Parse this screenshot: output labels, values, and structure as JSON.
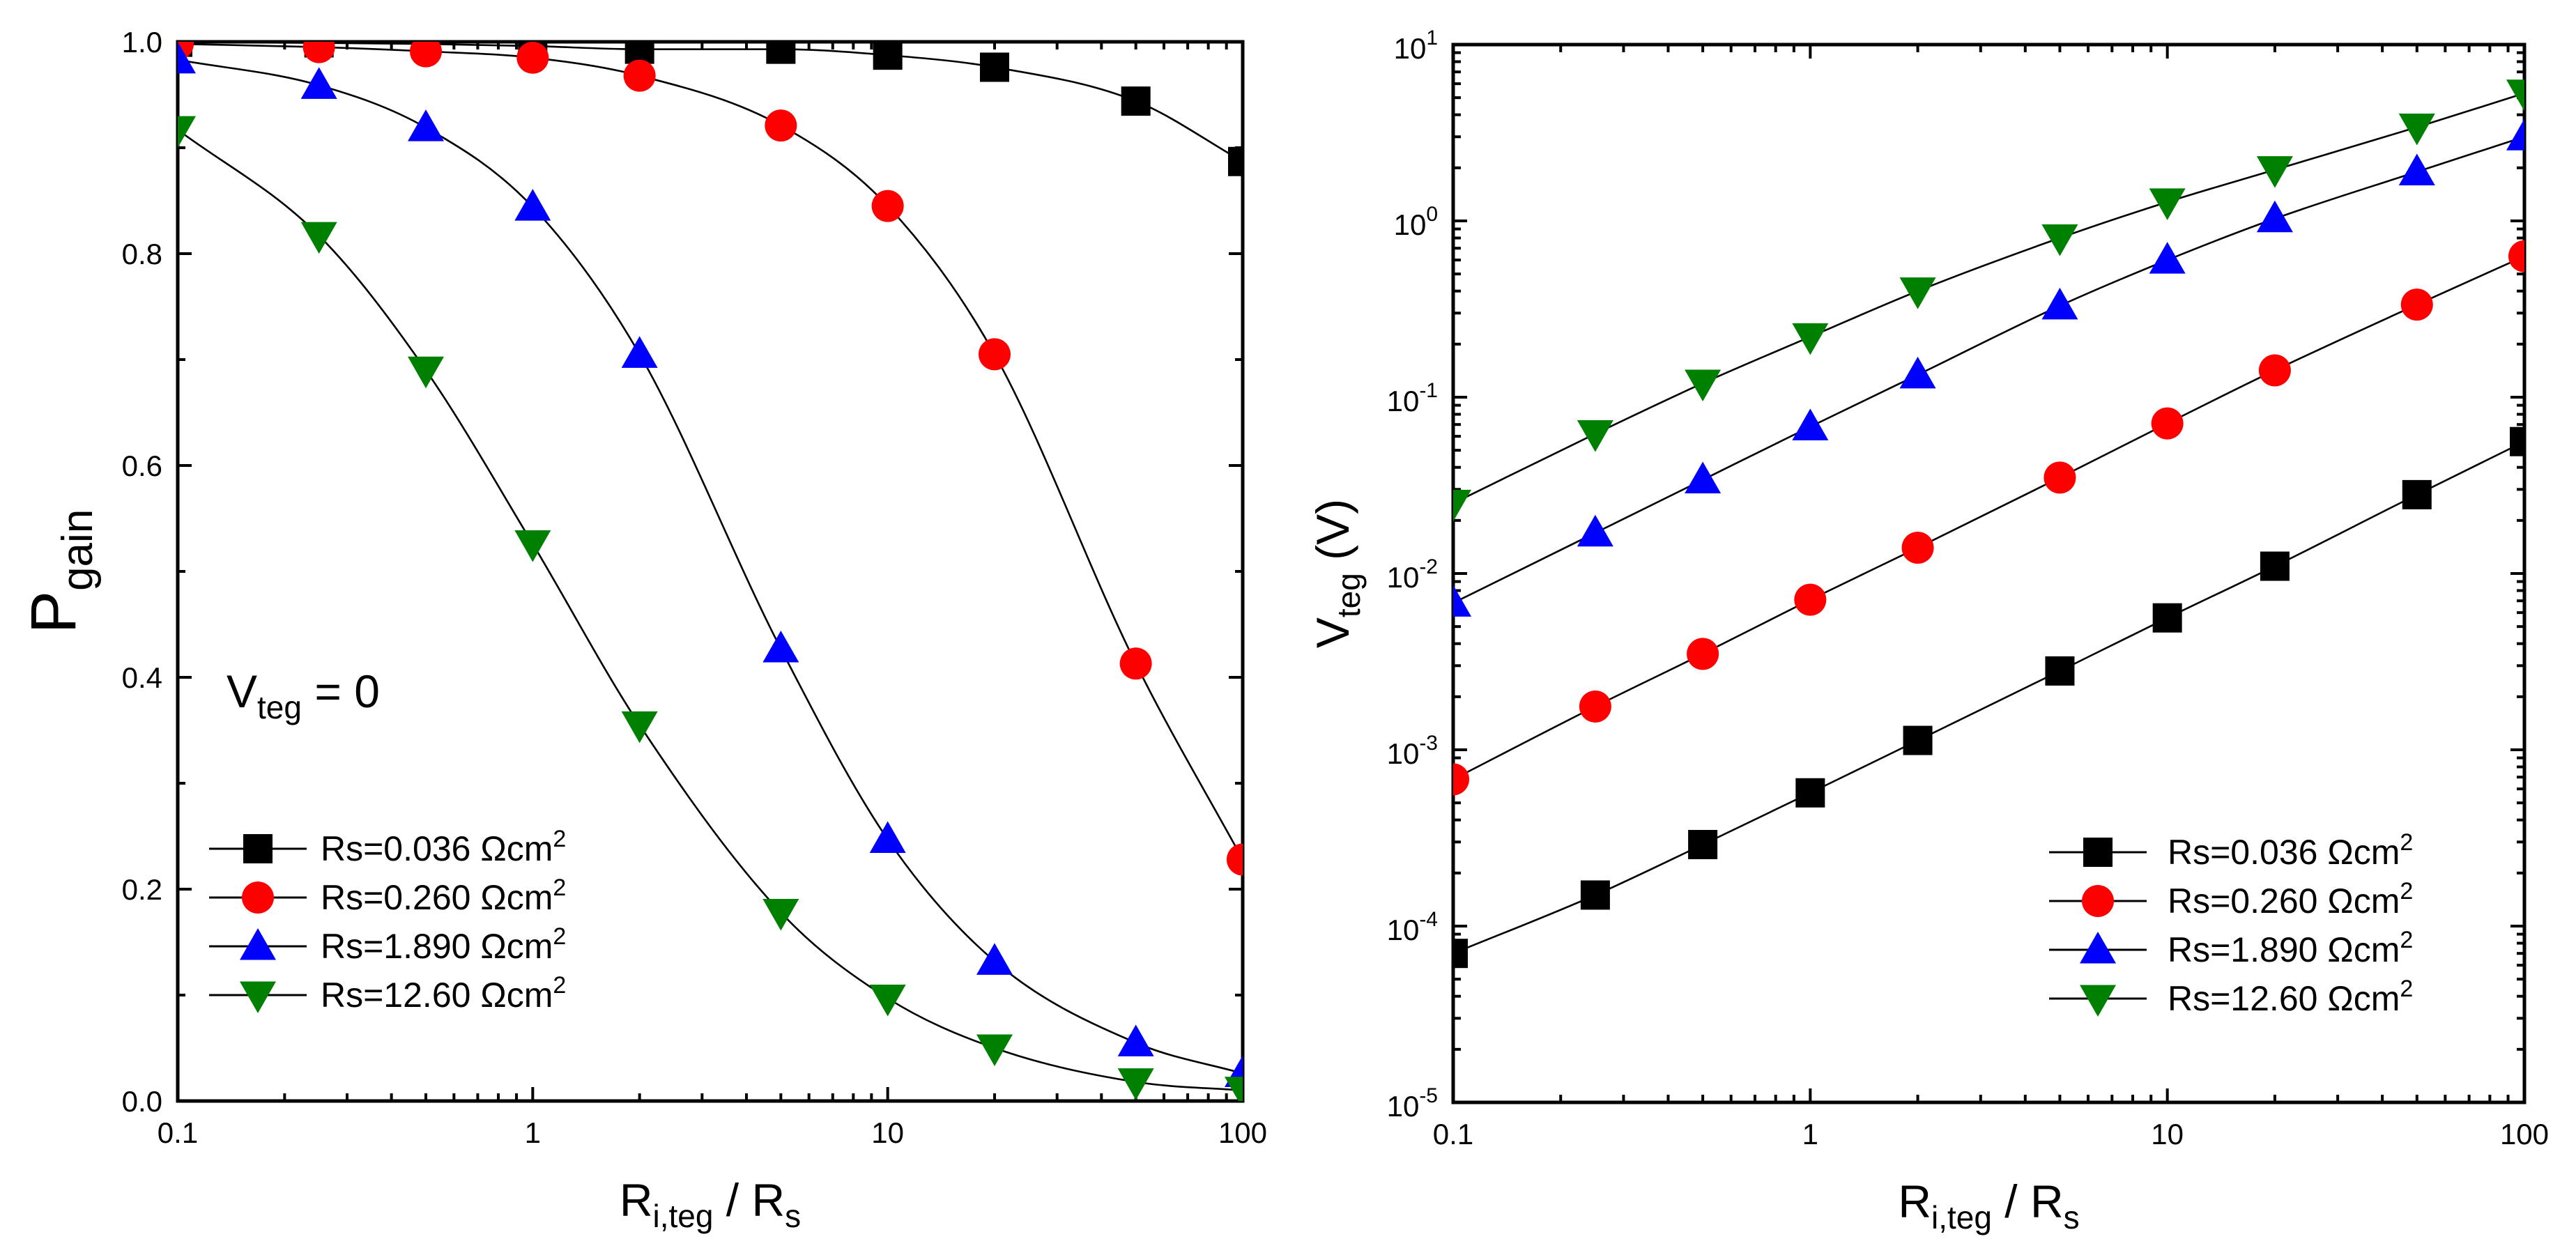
{
  "chart_data": [
    {
      "type": "line",
      "id": "left",
      "xscale": "log",
      "yscale": "linear",
      "xlim": [
        0.1,
        100
      ],
      "ylim": [
        0,
        1.0
      ],
      "xticks": [
        0.1,
        1,
        10,
        100
      ],
      "xtick_labels": [
        "0.1",
        "1",
        "10",
        "100"
      ],
      "yticks": [
        0.0,
        0.2,
        0.4,
        0.6,
        0.8,
        1.0
      ],
      "ytick_labels": [
        "0.0",
        "0.2",
        "0.4",
        "0.6",
        "0.8",
        "1.0"
      ],
      "ylabel": {
        "main": "P",
        "sub": "gain"
      },
      "xlabel": {
        "main": "R",
        "sub": "i,teg",
        "rest": " / R",
        "sub2": "s"
      },
      "annotation": {
        "main": "V",
        "sub": "teg",
        "rest": " = 0"
      },
      "legend_position": "bottom-left",
      "x": [
        0.1,
        0.25,
        0.5,
        1,
        2,
        5,
        10,
        20,
        50,
        100
      ],
      "series": [
        {
          "name": "Rs=0.036 Ωcm",
          "sup": "2",
          "marker": "square",
          "color": "#000000",
          "values": [
            0.9996,
            0.999,
            0.998,
            0.996,
            0.993,
            0.993,
            0.9874,
            0.976,
            0.944,
            0.887
          ]
        },
        {
          "name": "Rs=0.260 Ωcm",
          "sup": "2",
          "marker": "circle",
          "color": "#ff0000",
          "values": [
            0.998,
            0.995,
            0.991,
            0.985,
            0.968,
            0.921,
            0.845,
            0.705,
            0.413,
            0.228
          ]
        },
        {
          "name": "Rs=1.890 Ωcm",
          "sup": "2",
          "marker": "triangle-up",
          "color": "#0000ff",
          "values": [
            0.983,
            0.959,
            0.919,
            0.844,
            0.705,
            0.427,
            0.247,
            0.132,
            0.055,
            0.026
          ]
        },
        {
          "name": "Rs=12.60 Ωcm",
          "sup": "2",
          "marker": "triangle-down",
          "color": "#008000",
          "values": [
            0.917,
            0.817,
            0.69,
            0.526,
            0.355,
            0.178,
            0.097,
            0.05,
            0.018,
            0.01
          ]
        }
      ]
    },
    {
      "type": "line",
      "id": "right",
      "xscale": "log",
      "yscale": "log",
      "xlim": [
        0.1,
        100
      ],
      "ylim": [
        1e-05,
        10
      ],
      "xticks": [
        0.1,
        1,
        10,
        100
      ],
      "xtick_labels": [
        "0.1",
        "1",
        "10",
        "100"
      ],
      "ytick_exponents": [
        -5,
        -4,
        -3,
        -2,
        -1,
        0,
        1
      ],
      "ytick_base": "10",
      "ylabel": {
        "main": "V",
        "sub": "teg",
        "rest": " (V)"
      },
      "xlabel": {
        "main": "R",
        "sub": "i,teg",
        "rest": " / R",
        "sub2": "s"
      },
      "legend_position": "bottom-right",
      "x": [
        0.1,
        0.25,
        0.5,
        1,
        2,
        5,
        10,
        20,
        50,
        100
      ],
      "series": [
        {
          "name": "Rs=0.036 Ωcm",
          "sup": "2",
          "marker": "square",
          "color": "#000000",
          "values": [
            7e-05,
            0.00015,
            0.00029,
            0.00057,
            0.00113,
            0.0028,
            0.0056,
            0.011,
            0.028,
            0.056
          ]
        },
        {
          "name": "Rs=0.260 Ωcm",
          "sup": "2",
          "marker": "circle",
          "color": "#ff0000",
          "values": [
            0.00068,
            0.00176,
            0.0035,
            0.0071,
            0.014,
            0.035,
            0.071,
            0.142,
            0.335,
            0.63
          ]
        },
        {
          "name": "Rs=1.890 Ωcm",
          "sup": "2",
          "marker": "triangle-up",
          "color": "#0000ff",
          "values": [
            0.0068,
            0.017,
            0.034,
            0.068,
            0.134,
            0.33,
            0.6,
            1.03,
            1.9,
            3.0
          ]
        },
        {
          "name": "Rs=12.60 Ωcm",
          "sup": "2",
          "marker": "triangle-down",
          "color": "#008000",
          "values": [
            0.025,
            0.062,
            0.12,
            0.22,
            0.4,
            0.8,
            1.28,
            1.95,
            3.4,
            5.3
          ]
        }
      ]
    }
  ]
}
